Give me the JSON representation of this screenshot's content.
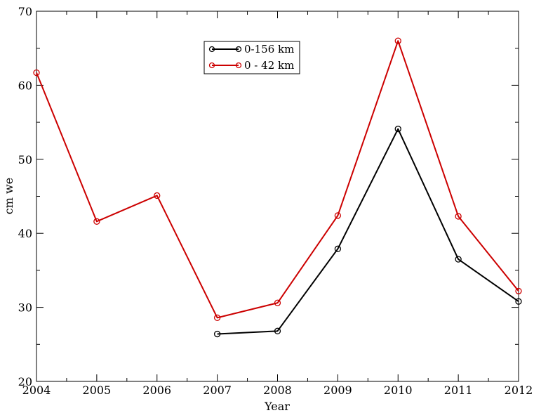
{
  "chart_data": {
    "type": "line",
    "title": "",
    "xlabel": "Year",
    "ylabel": "cm we",
    "xlim": [
      2004,
      2012
    ],
    "ylim": [
      20,
      70
    ],
    "x_ticks": [
      2004,
      2005,
      2006,
      2007,
      2008,
      2009,
      2010,
      2011,
      2012
    ],
    "y_ticks": [
      20,
      30,
      40,
      50,
      60,
      70
    ],
    "grid": false,
    "legend_position": "top-center",
    "series": [
      {
        "name": "0-156 km",
        "color": "#000000",
        "marker": "circle",
        "x": [
          2007,
          2008,
          2009,
          2010,
          2011,
          2012
        ],
        "y": [
          26.4,
          26.8,
          37.9,
          54.1,
          36.5,
          30.8
        ]
      },
      {
        "name": "0 - 42 km",
        "color": "#cc0000",
        "marker": "circle",
        "x": [
          2004,
          2005,
          2006,
          2007,
          2008,
          2009,
          2010,
          2011,
          2012
        ],
        "y": [
          61.7,
          41.6,
          45.1,
          28.6,
          30.6,
          42.4,
          66.0,
          42.3,
          32.2
        ]
      }
    ]
  }
}
